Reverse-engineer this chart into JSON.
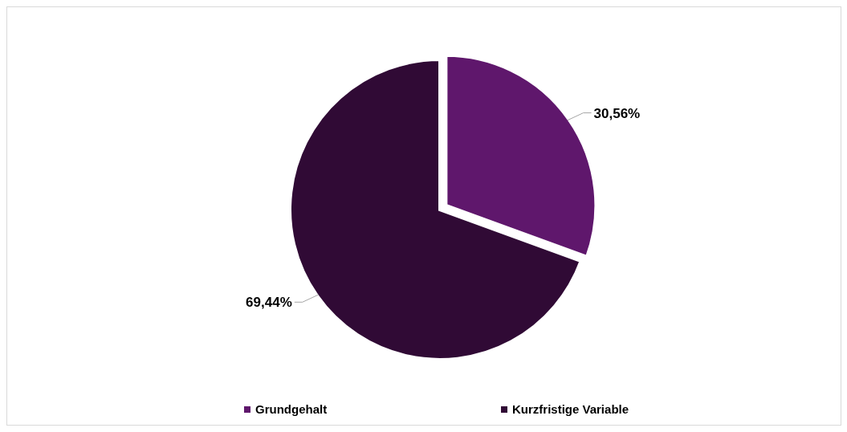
{
  "chart_data": {
    "type": "pie",
    "categories": [
      "Grundgehalt",
      "Kurzfristige Variable"
    ],
    "values": [
      30.56,
      69.44
    ],
    "colors": [
      "#5f176c",
      "#300a35"
    ],
    "value_labels": [
      "30,56%",
      "69,44%"
    ],
    "legend": "bottom"
  }
}
